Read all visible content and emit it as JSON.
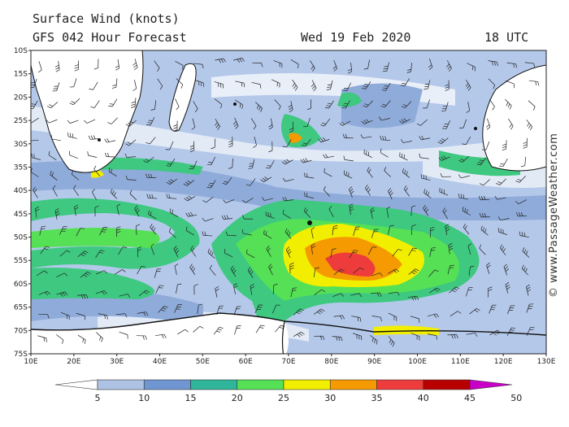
{
  "header": {
    "title": "Surface Wind (knots)",
    "model": "GFS 042 Hour Forecast",
    "date": "Wed 19 Feb 2020",
    "time": "18 UTC"
  },
  "credit": "© www.PassageWeather.com",
  "lat_labels": [
    "10S",
    "15S",
    "20S",
    "25S",
    "30S",
    "35S",
    "40S",
    "45S",
    "50S",
    "55S",
    "60S",
    "65S",
    "70S",
    "75S"
  ],
  "lon_labels": [
    "10E",
    "20E",
    "30E",
    "40E",
    "50E",
    "60E",
    "70E",
    "80E",
    "90E",
    "100E",
    "110E",
    "120E",
    "130E"
  ],
  "colorbar": {
    "labels": [
      "5",
      "10",
      "15",
      "20",
      "25",
      "30",
      "35",
      "40",
      "45",
      "50"
    ],
    "colors": [
      "#e6ecf7",
      "#aec3e3",
      "#6f96d1",
      "#2fb59a",
      "#55e055",
      "#f2ee00",
      "#f59a00",
      "#ee3c3c",
      "#b80000",
      "#c800c8"
    ]
  },
  "wind_field": {
    "background": "#b4c8ea",
    "light_zone": "#e9eff8",
    "moderate": "#6f96d1",
    "strong": "#3ec880",
    "gale": "#55e055",
    "storm": "#f2ee00",
    "severe": "#f59a00",
    "extreme": "#ee3c3c",
    "land": "#ffffff"
  }
}
